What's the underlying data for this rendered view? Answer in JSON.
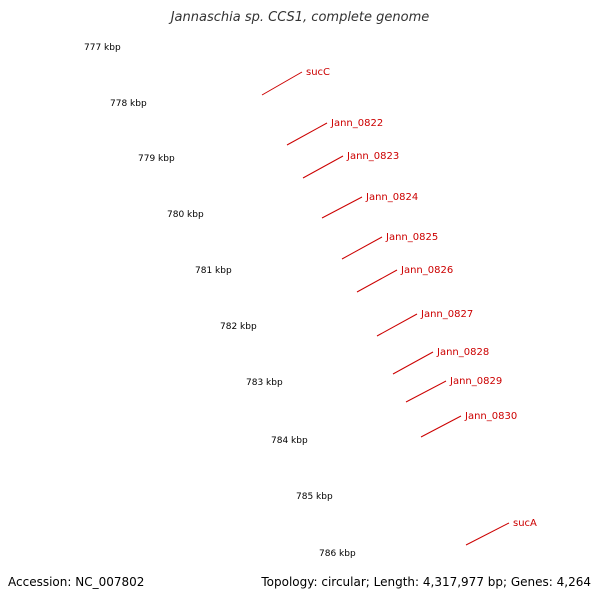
{
  "title": "Jannaschia sp. CCS1, complete genome",
  "accession": "Accession: NC_007802",
  "summary": "Topology: circular; Length: 4,317,977 bp; Genes: 4,264",
  "colors": {
    "backbone": "#808080",
    "cds_forward": "#ff0000",
    "cds_other": "#00ffff",
    "cds_olive": "#6b8e23",
    "tick": "#006400",
    "label": "#cc0000"
  },
  "scale_labels": [
    "777 kbp",
    "778 kbp",
    "779 kbp",
    "780 kbp",
    "781 kbp",
    "782 kbp",
    "783 kbp",
    "784 kbp",
    "785 kbp",
    "786 kbp"
  ],
  "gene_labels": [
    "sucC",
    "Jann_0822",
    "Jann_0823",
    "Jann_0824",
    "Jann_0825",
    "Jann_0826",
    "Jann_0827",
    "Jann_0828",
    "Jann_0829",
    "Jann_0830",
    "sucA"
  ]
}
